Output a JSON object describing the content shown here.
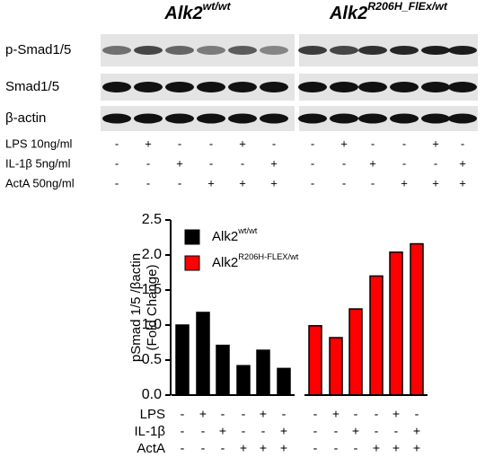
{
  "blot": {
    "groups": [
      {
        "base": "Alk2",
        "sup": "wt/wt"
      },
      {
        "base": "Alk2",
        "sup": "R206H_FlEx/wt"
      }
    ],
    "rows": [
      "p-Smad1/5",
      "Smad1/5",
      "β-actin"
    ],
    "treatments": [
      {
        "label": "LPS 10ng/ml",
        "signs": [
          "-",
          "+",
          "-",
          "-",
          "+",
          "-",
          "-",
          "+",
          "-",
          "-",
          "+",
          "-"
        ]
      },
      {
        "label": "IL-1β 5ng/ml",
        "signs": [
          "-",
          "-",
          "+",
          "-",
          "-",
          "+",
          "-",
          "-",
          "+",
          "-",
          "-",
          "+"
        ]
      },
      {
        "label": "ActA 50ng/ml",
        "signs": [
          "-",
          "-",
          "-",
          "+",
          "+",
          "+",
          "-",
          "-",
          "-",
          "+",
          "+",
          "+"
        ]
      }
    ]
  },
  "chart_data": {
    "type": "bar",
    "y_label_lines": [
      "pSmad 1/5 /βactin",
      "(Fold Change)"
    ],
    "categories": [
      null,
      null,
      null,
      null,
      null,
      null,
      null,
      null,
      null,
      null,
      null,
      null
    ],
    "series": [
      {
        "name": "Alk2",
        "name_superscript": "wt/wt",
        "color": "#000000",
        "values": [
          1.0,
          1.18,
          0.71,
          0.42,
          0.64,
          0.38,
          null,
          null,
          null,
          null,
          null,
          null
        ]
      },
      {
        "name": "Alk2",
        "name_superscript": "R206H-FLEX/wt",
        "color": "#ff0000",
        "values": [
          null,
          null,
          null,
          null,
          null,
          null,
          0.99,
          0.82,
          1.23,
          1.7,
          2.04,
          2.16
        ]
      }
    ],
    "ylim": [
      0,
      2.5
    ],
    "yticks": [
      {
        "value": 0,
        "label": "0.0"
      },
      {
        "value": 0.5,
        "label": "0.5"
      },
      {
        "value": 1,
        "label": "1.0"
      },
      {
        "value": 1.5,
        "label": "1.5"
      },
      {
        "value": 2,
        "label": "2.0"
      },
      {
        "value": 2.5,
        "label": "2.5"
      }
    ],
    "treatments": [
      {
        "label": "LPS",
        "signs": [
          "-",
          "+",
          "-",
          "-",
          "+",
          "-",
          "-",
          "+",
          "-",
          "-",
          "+",
          "-"
        ]
      },
      {
        "label": "IL-1β",
        "signs": [
          "-",
          "-",
          "+",
          "-",
          "-",
          "+",
          "-",
          "-",
          "+",
          "-",
          "-",
          "+"
        ]
      },
      {
        "label": "ActA",
        "signs": [
          "-",
          "-",
          "-",
          "+",
          "+",
          "+",
          "-",
          "-",
          "-",
          "+",
          "+",
          "+"
        ]
      }
    ]
  }
}
